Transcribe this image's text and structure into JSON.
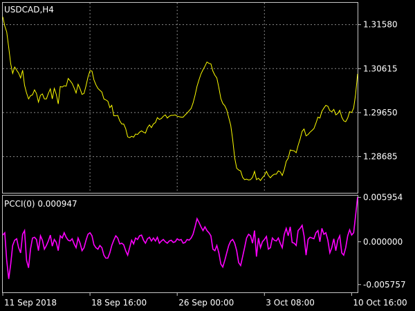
{
  "chart_data": [
    {
      "type": "line",
      "title": "USDCAD,H4",
      "color": "#ffff00",
      "ylim": [
        1.2789,
        1.3206
      ],
      "y_ticks": [
        "1.31580",
        "1.30615",
        "1.29650",
        "1.28685"
      ],
      "y_tick_values": [
        1.3158,
        1.30615,
        1.2965,
        1.28685
      ],
      "grid": true,
      "values": [
        1.3175,
        1.3155,
        1.3142,
        1.3108,
        1.3072,
        1.3051,
        1.3065,
        1.3058,
        1.3052,
        1.3041,
        1.3058,
        1.3025,
        1.3008,
        1.2995,
        1.3002,
        1.3004,
        1.3015,
        1.3007,
        1.2988,
        1.3003,
        1.3006,
        1.2995,
        1.2995,
        1.3007,
        1.3017,
        1.2995,
        1.3018,
        1.3005,
        1.2984,
        1.3022,
        1.3021,
        1.3024,
        1.3023,
        1.304,
        1.3035,
        1.3029,
        1.3019,
        1.3008,
        1.3027,
        1.3017,
        1.3005,
        1.3007,
        1.3024,
        1.3043,
        1.3057,
        1.3056,
        1.3037,
        1.3026,
        1.3018,
        1.3014,
        1.301,
        1.2995,
        1.2993,
        1.299,
        1.2976,
        1.2981,
        1.2958,
        1.2958,
        1.2959,
        1.2947,
        1.294,
        1.294,
        1.293,
        1.2912,
        1.291,
        1.2913,
        1.2911,
        1.2918,
        1.2917,
        1.2922,
        1.2925,
        1.2922,
        1.292,
        1.2932,
        1.2938,
        1.2932,
        1.294,
        1.2943,
        1.2954,
        1.295,
        1.2952,
        1.2957,
        1.296,
        1.2953,
        1.2957,
        1.2959,
        1.2959,
        1.296,
        1.2957,
        1.2956,
        1.2955,
        1.2955,
        1.296,
        1.2964,
        1.2969,
        1.2974,
        1.2986,
        1.3003,
        1.3023,
        1.3037,
        1.305,
        1.3059,
        1.3067,
        1.3076,
        1.3073,
        1.3072,
        1.3056,
        1.3047,
        1.3041,
        1.302,
        1.2996,
        1.2985,
        1.298,
        1.2971,
        1.2954,
        1.2937,
        1.2906,
        1.2866,
        1.2843,
        1.2839,
        1.2837,
        1.2823,
        1.2818,
        1.2819,
        1.2817,
        1.2818,
        1.2823,
        1.2836,
        1.2818,
        1.2821,
        1.2816,
        1.2822,
        1.2827,
        1.2836,
        1.2827,
        1.2822,
        1.2827,
        1.283,
        1.283,
        1.2837,
        1.2835,
        1.2827,
        1.284,
        1.2858,
        1.2865,
        1.2883,
        1.2882,
        1.2881,
        1.2877,
        1.2893,
        1.2907,
        1.2924,
        1.2929,
        1.2914,
        1.2917,
        1.2922,
        1.2926,
        1.293,
        1.2942,
        1.2955,
        1.2953,
        1.2968,
        1.2975,
        1.2981,
        1.2979,
        1.2969,
        1.2967,
        1.2972,
        1.296,
        1.2963,
        1.297,
        1.2955,
        1.2947,
        1.2945,
        1.2953,
        1.2967,
        1.2965,
        1.2975,
        1.3005,
        1.305
      ]
    },
    {
      "type": "line",
      "title": "PCCI(0) 0.000947",
      "color": "#ff00ff",
      "ylim": [
        -0.0068,
        0.0062
      ],
      "y_ticks": [
        "0.005954",
        "0.000000",
        "-0.005757"
      ],
      "y_tick_values": [
        0.005954,
        0.0,
        -0.005757
      ],
      "grid": false,
      "values": [
        0.0009,
        0.0012,
        -0.0025,
        -0.005,
        -0.003,
        -0.0005,
        0.0002,
        0.0004,
        -0.0008,
        -0.0015,
        0.001,
        0.0015,
        -0.0025,
        -0.0035,
        -0.001,
        0.0005,
        0.0006,
        0.0003,
        -0.0012,
        0.0008,
        0.0002,
        -0.001,
        -0.0005,
        0.0001,
        0.0009,
        -0.0006,
        0.0003,
        -0.0001,
        -0.0012,
        0.0008,
        0.0005,
        0.0012,
        0.0006,
        0.0002,
        0.0001,
        0.0004,
        -0.0003,
        -0.0008,
        0.0005,
        -0.0002,
        -0.0012,
        -0.0008,
        0.0002,
        0.001,
        0.0012,
        0.0008,
        -0.0004,
        -0.0008,
        -0.001,
        -0.0005,
        -0.0008,
        -0.0018,
        -0.0022,
        -0.0022,
        -0.0015,
        -0.0005,
        0.0002,
        0.0008,
        0.0005,
        -0.0003,
        -0.0002,
        -0.0004,
        -0.0012,
        -0.0018,
        -0.0008,
        0.0002,
        -0.0003,
        0.0005,
        0.0003,
        0.0008,
        0.0009,
        0.0002,
        -0.0002,
        0.0004,
        0.0006,
        0.0001,
        0.0005,
        0.0001,
        0.0006,
        -0.0002,
        0.0001,
        0.0003,
        0.0,
        -0.0002,
        0.0001,
        0.0002,
        -0.0001,
        0.0,
        0.0004,
        0.0002,
        0.0003,
        -0.0002,
        -0.0001,
        0.0003,
        0.0002,
        0.0005,
        0.001,
        0.002,
        0.0031,
        0.0026,
        0.002,
        0.0015,
        0.002,
        0.0015,
        0.0012,
        0.0008,
        -0.001,
        -0.0012,
        -0.0005,
        -0.0015,
        -0.003,
        -0.0034,
        -0.0025,
        -0.0015,
        -0.0005,
        0.0001,
        0.0003,
        -0.0002,
        -0.0012,
        -0.0028,
        -0.0032,
        -0.002,
        -0.0008,
        0.0005,
        0.001,
        0.0008,
        -0.0002,
        0.0015,
        -0.002,
        0.0005,
        -0.0008,
        0.0,
        0.0003,
        0.0007,
        -0.001,
        -0.0008,
        0.0005,
        0.0002,
        0.0001,
        0.0005,
        -0.0002,
        -0.0008,
        0.001,
        0.0018,
        0.0008,
        0.002,
        -0.0001,
        -0.0002,
        -0.0005,
        0.0015,
        0.0018,
        0.0022,
        0.0008,
        -0.0018,
        0.0003,
        0.0006,
        0.0005,
        0.0004,
        0.0012,
        0.0015,
        0.0,
        0.0018,
        0.001,
        0.0012,
        0.0002,
        -0.0015,
        -0.0008,
        0.0004,
        -0.0012,
        0.0002,
        0.0008,
        -0.0015,
        -0.0018,
        -0.0008,
        0.0008,
        0.0016,
        0.0009,
        0.0012,
        0.0035,
        0.006
      ]
    }
  ],
  "x_axis": {
    "labels": [
      "11 Sep 2018",
      "18 Sep 16:00",
      "26 Sep 00:00",
      "3 Oct 08:00",
      "10 Oct 16:00"
    ],
    "label_index": [
      0,
      44,
      88,
      132,
      176
    ]
  }
}
